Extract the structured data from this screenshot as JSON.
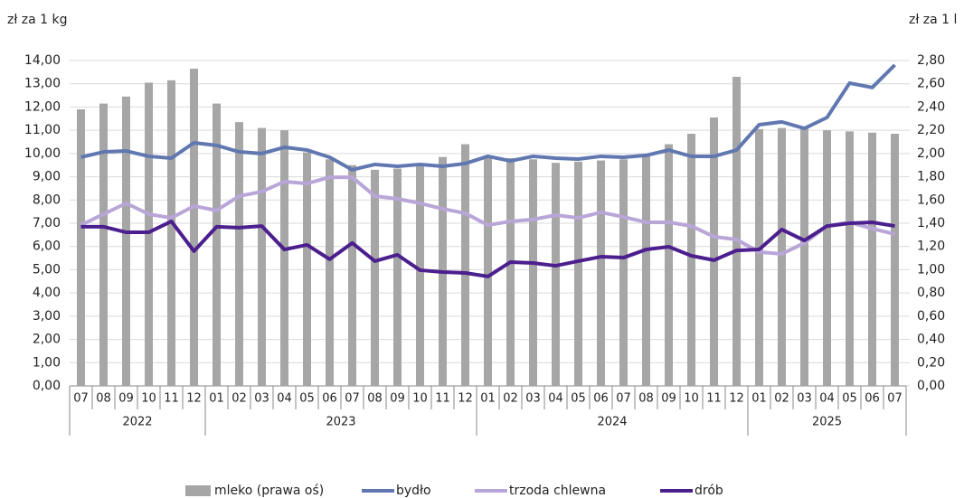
{
  "chart_data": {
    "type": "combo",
    "y_axis_label": "zł za 1 kg",
    "y2_axis_label": "zł za 1 l",
    "categories": [
      "07",
      "08",
      "09",
      "10",
      "11",
      "12",
      "01",
      "02",
      "03",
      "04",
      "05",
      "06",
      "07",
      "08",
      "09",
      "10",
      "11",
      "12",
      "01",
      "02",
      "03",
      "04",
      "05",
      "06",
      "07",
      "08",
      "09",
      "10",
      "11",
      "12",
      "01",
      "02",
      "03",
      "04",
      "05",
      "06",
      "07"
    ],
    "category_years": [
      "2022",
      "2022",
      "2022",
      "2022",
      "2022",
      "2022",
      "2023",
      "2023",
      "2023",
      "2023",
      "2023",
      "2023",
      "2023",
      "2023",
      "2023",
      "2023",
      "2023",
      "2023",
      "2024",
      "2024",
      "2024",
      "2024",
      "2024",
      "2024",
      "2024",
      "2024",
      "2024",
      "2024",
      "2024",
      "2024",
      "2025",
      "2025",
      "2025",
      "2025",
      "2025",
      "2025",
      "2025"
    ],
    "series": [
      {
        "name": "mleko (prawa oś)",
        "type": "bar",
        "axis": "y2",
        "color": "#a6a6a6",
        "values": [
          2.38,
          2.43,
          2.49,
          2.61,
          2.63,
          2.73,
          2.43,
          2.27,
          2.22,
          2.2,
          2.01,
          1.95,
          1.9,
          1.86,
          1.87,
          1.9,
          1.97,
          2.08,
          1.98,
          1.96,
          1.95,
          1.92,
          1.93,
          1.94,
          1.95,
          1.98,
          2.08,
          2.17,
          2.31,
          2.66,
          2.21,
          2.22,
          2.22,
          2.2,
          2.19,
          2.18,
          2.17
        ]
      },
      {
        "name": "bydło",
        "type": "line",
        "color": "#6077b0",
        "values": [
          9.84,
          10.07,
          10.11,
          9.88,
          9.8,
          10.46,
          10.35,
          10.07,
          10.0,
          10.27,
          10.15,
          9.84,
          9.3,
          9.53,
          9.45,
          9.53,
          9.45,
          9.57,
          9.88,
          9.68,
          9.88,
          9.8,
          9.76,
          9.88,
          9.84,
          9.92,
          10.15,
          9.88,
          9.88,
          10.15,
          11.24,
          11.36,
          11.08,
          11.55,
          13.03,
          12.84,
          13.81
        ]
      },
      {
        "name": "trzoda chlewna",
        "type": "line",
        "color": "#b9a6d8",
        "values": [
          6.92,
          7.39,
          7.86,
          7.39,
          7.23,
          7.74,
          7.55,
          8.17,
          8.36,
          8.79,
          8.71,
          8.98,
          8.98,
          8.17,
          8.05,
          7.86,
          7.62,
          7.43,
          6.92,
          7.08,
          7.16,
          7.35,
          7.23,
          7.47,
          7.27,
          7.04,
          7.04,
          6.88,
          6.42,
          6.3,
          5.76,
          5.68,
          6.15,
          6.88,
          7.04,
          6.77,
          6.53
        ]
      },
      {
        "name": "drób",
        "type": "line",
        "color": "#4b1f8e",
        "values": [
          6.85,
          6.85,
          6.61,
          6.61,
          7.08,
          5.8,
          6.85,
          6.81,
          6.88,
          5.87,
          6.07,
          5.45,
          6.15,
          5.37,
          5.64,
          4.98,
          4.9,
          4.86,
          4.71,
          5.33,
          5.29,
          5.17,
          5.37,
          5.56,
          5.52,
          5.87,
          5.99,
          5.6,
          5.41,
          5.83,
          5.87,
          6.73,
          6.26,
          6.88,
          7.0,
          7.04,
          6.88
        ]
      }
    ],
    "ylim": [
      0,
      14
    ],
    "yticks": [
      {
        "value": 0,
        "label": "0,00"
      },
      {
        "value": 1,
        "label": "1,00"
      },
      {
        "value": 2,
        "label": "2,00"
      },
      {
        "value": 3,
        "label": "3,00"
      },
      {
        "value": 4,
        "label": "4,00"
      },
      {
        "value": 5,
        "label": "5,00"
      },
      {
        "value": 6,
        "label": "6,00"
      },
      {
        "value": 7,
        "label": "7,00"
      },
      {
        "value": 8,
        "label": "8,00"
      },
      {
        "value": 9,
        "label": "9,00"
      },
      {
        "value": 10,
        "label": "10,00"
      },
      {
        "value": 11,
        "label": "11,00"
      },
      {
        "value": 12,
        "label": "12,00"
      },
      {
        "value": 13,
        "label": "13,00"
      },
      {
        "value": 14,
        "label": "14,00"
      }
    ],
    "y2lim": [
      0,
      2.8
    ],
    "y2ticks": [
      {
        "value": 0,
        "label": "0,00"
      },
      {
        "value": 0.2,
        "label": "0,20"
      },
      {
        "value": 0.4,
        "label": "0,40"
      },
      {
        "value": 0.6,
        "label": "0,60"
      },
      {
        "value": 0.8,
        "label": "0,80"
      },
      {
        "value": 1.0,
        "label": "1,00"
      },
      {
        "value": 1.2,
        "label": "1,20"
      },
      {
        "value": 1.4,
        "label": "1,40"
      },
      {
        "value": 1.6,
        "label": "1,60"
      },
      {
        "value": 1.8,
        "label": "1,80"
      },
      {
        "value": 2.0,
        "label": "2,00"
      },
      {
        "value": 2.2,
        "label": "2,20"
      },
      {
        "value": 2.4,
        "label": "2,40"
      },
      {
        "value": 2.6,
        "label": "2,60"
      },
      {
        "value": 2.8,
        "label": "2,80"
      }
    ],
    "grid": true
  }
}
